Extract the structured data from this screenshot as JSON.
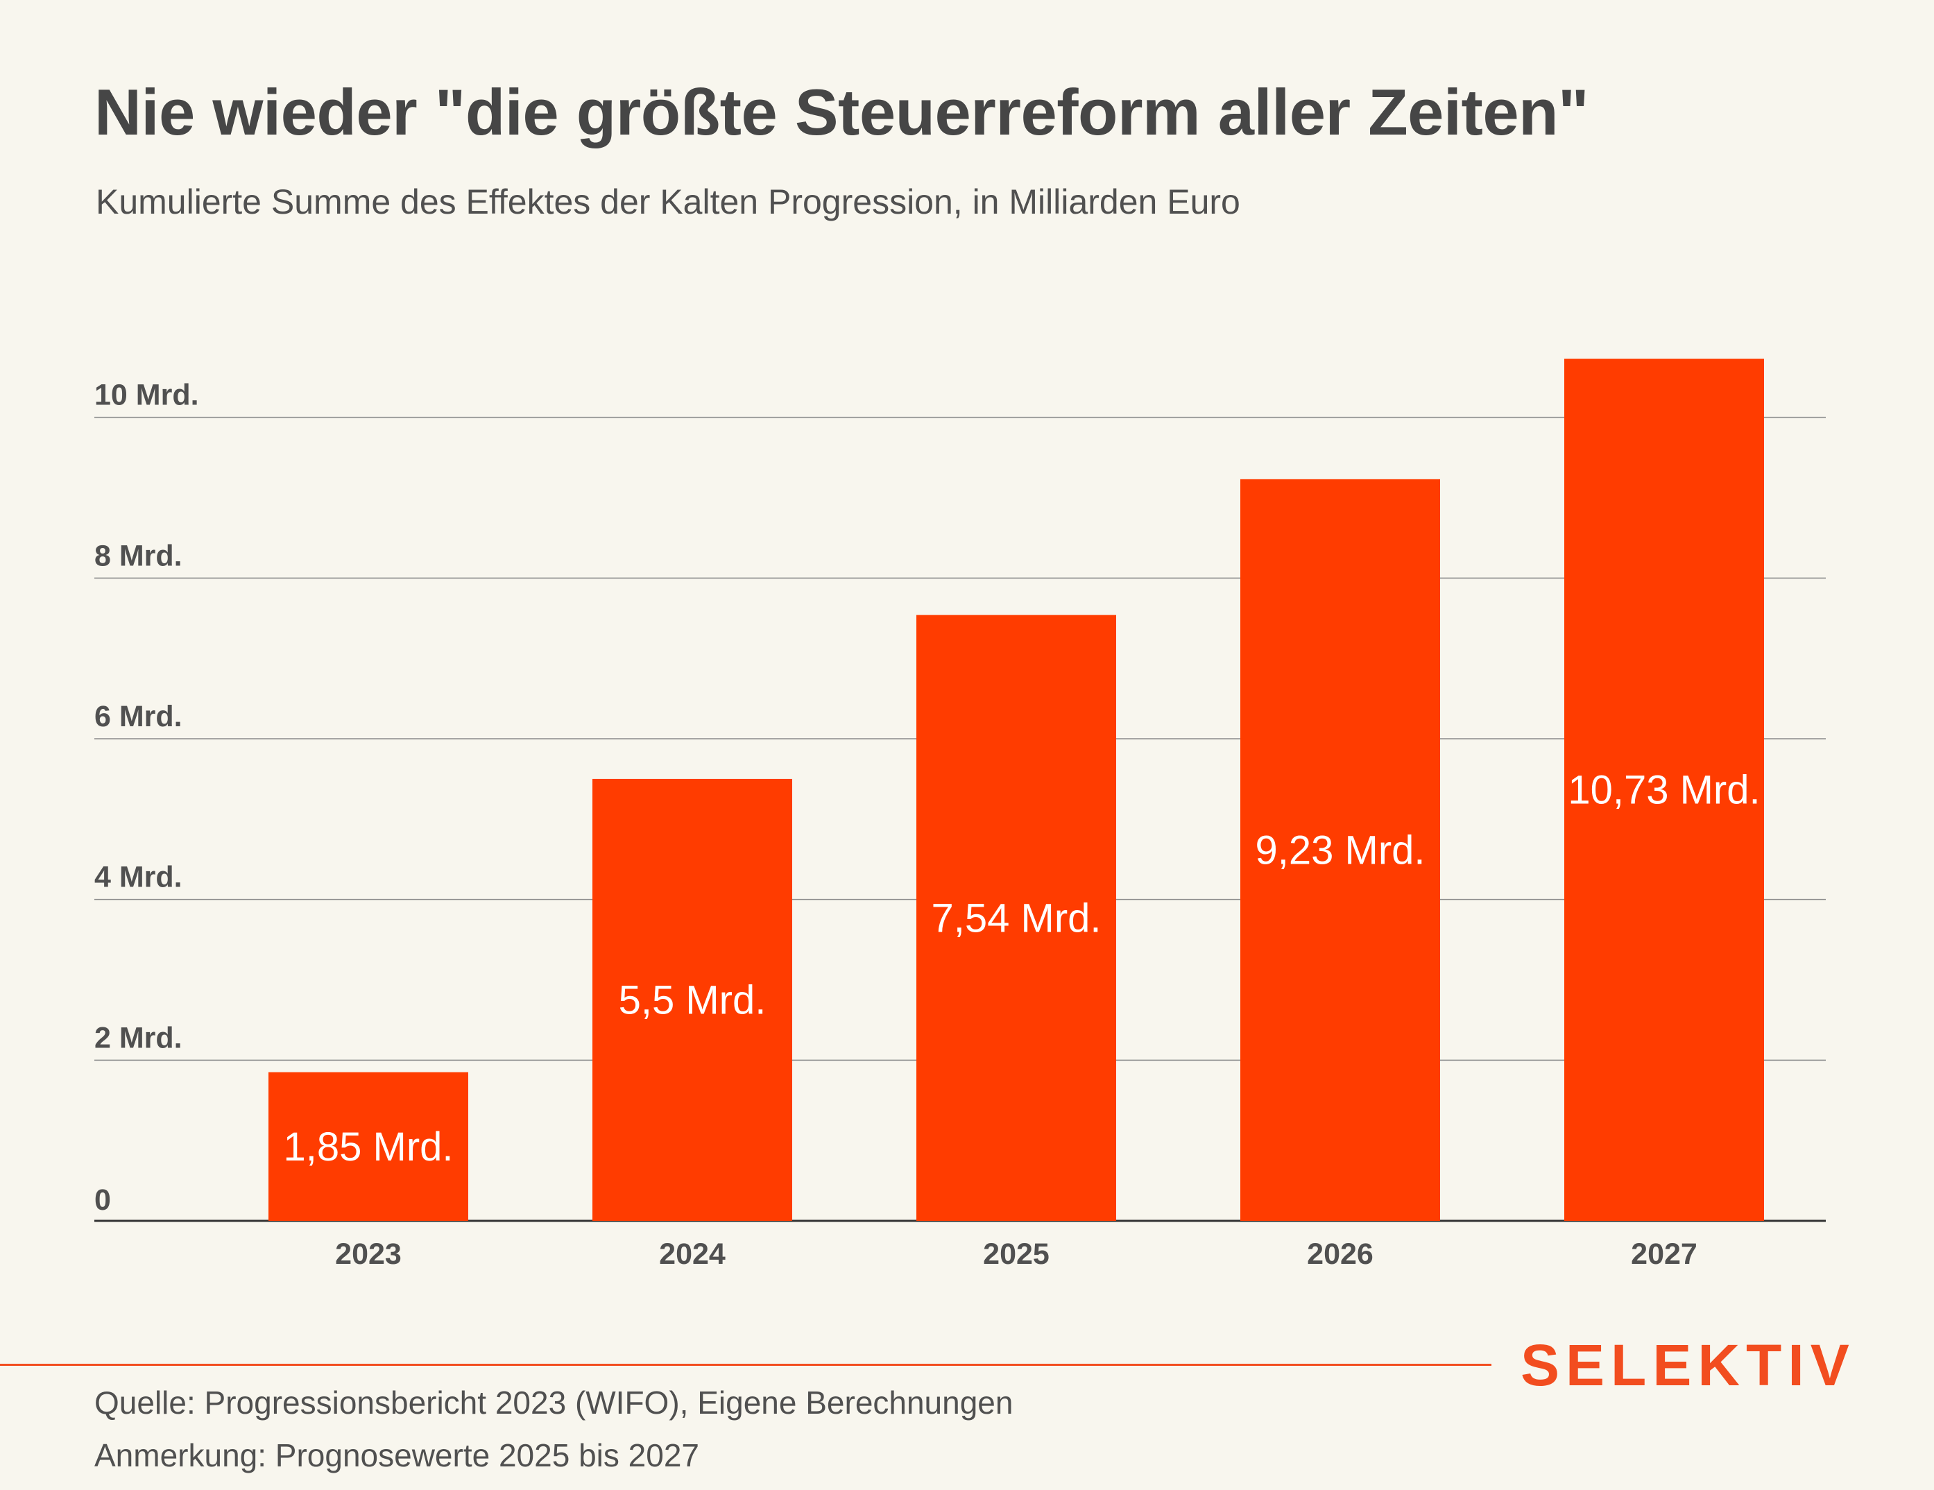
{
  "header": {
    "title": "Nie wieder \"die größte Steuerreform aller Zeiten\"",
    "subtitle": "Kumulierte Summe des Effektes der Kalten Progression, in Milliarden Euro"
  },
  "chart_data": {
    "type": "bar",
    "categories": [
      "2023",
      "2024",
      "2025",
      "2026",
      "2027"
    ],
    "values": [
      1.85,
      5.5,
      7.54,
      9.23,
      10.73
    ],
    "data_labels": [
      "1,85 Mrd.",
      "5,5 Mrd.",
      "7,54 Mrd.",
      "9,23 Mrd.",
      "10,73 Mrd."
    ],
    "ylim": [
      0,
      10.8
    ],
    "yticks": [
      0,
      2,
      4,
      6,
      8,
      10
    ],
    "ytick_labels": [
      "0",
      "2 Mrd.",
      "4 Mrd.",
      "6 Mrd.",
      "8 Mrd.",
      "10 Mrd."
    ],
    "grid": true,
    "bar_color": "#ff3c00"
  },
  "footer": {
    "brand": "SELEKTIV",
    "brand_color": "#f24d1f",
    "source": "Quelle: Progressionsbericht 2023 (WIFO), Eigene Berechnungen",
    "note": "Anmerkung: Prognosewerte 2025 bis 2027"
  },
  "colors": {
    "background": "#f8f6ee",
    "gridline": "#8a8a8a",
    "text": "#505050"
  }
}
